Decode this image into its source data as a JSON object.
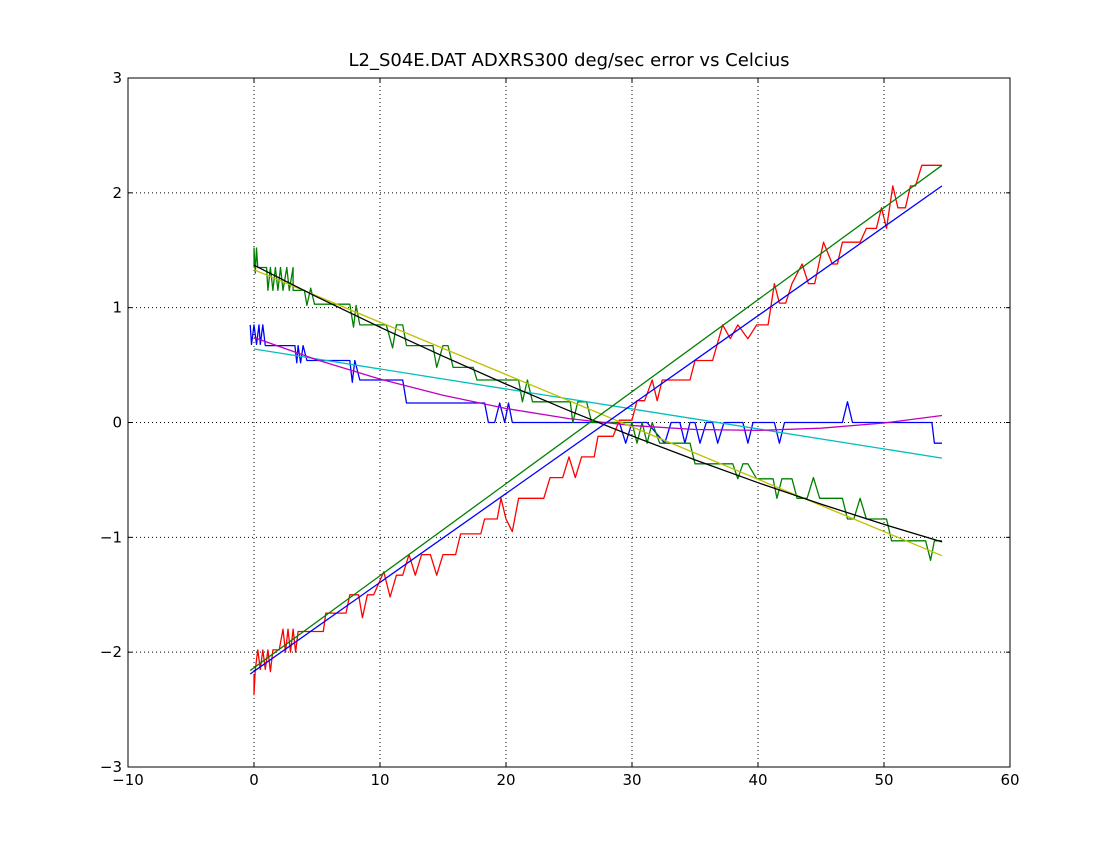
{
  "chart_data": {
    "type": "line",
    "title": "L2_S04E.DAT ADXRS300 deg/sec error vs Celcius",
    "xlabel": "",
    "ylabel": "",
    "xlim": [
      -10,
      60
    ],
    "ylim": [
      -3,
      3
    ],
    "xticks": [
      -10,
      0,
      10,
      20,
      30,
      40,
      50,
      60
    ],
    "yticks": [
      -3,
      -2,
      -1,
      0,
      1,
      2,
      3
    ],
    "grid": true,
    "legend": "none",
    "series": [
      {
        "color": "#0000ff",
        "points": [
          [
            -0.3,
            0.85
          ],
          [
            -0.2,
            0.68
          ],
          [
            0,
            0.85
          ],
          [
            0.2,
            0.68
          ],
          [
            0.4,
            0.85
          ],
          [
            0.5,
            0.68
          ],
          [
            0.7,
            0.85
          ],
          [
            0.9,
            0.67
          ],
          [
            3.25,
            0.67
          ],
          [
            3.4,
            0.52
          ],
          [
            3.5,
            0.67
          ],
          [
            3.7,
            0.52
          ],
          [
            3.9,
            0.67
          ],
          [
            4.2,
            0.54
          ],
          [
            7.6,
            0.54
          ],
          [
            7.8,
            0.35
          ],
          [
            8.0,
            0.54
          ],
          [
            8.4,
            0.37
          ],
          [
            11.8,
            0.37
          ],
          [
            12.1,
            0.17
          ],
          [
            18.3,
            0.17
          ],
          [
            18.6,
            0
          ],
          [
            19.1,
            0
          ],
          [
            19.5,
            0.17
          ],
          [
            19.9,
            0
          ],
          [
            20.2,
            0.17
          ],
          [
            20.5,
            0
          ],
          [
            29,
            0
          ],
          [
            29.5,
            -0.18
          ],
          [
            30,
            0
          ],
          [
            31.2,
            0
          ],
          [
            32.6,
            -0.18
          ],
          [
            33.1,
            0
          ],
          [
            33.8,
            0
          ],
          [
            34.2,
            -0.18
          ],
          [
            34.6,
            0
          ],
          [
            35,
            0
          ],
          [
            35.4,
            -0.18
          ],
          [
            35.9,
            0
          ],
          [
            36.4,
            0
          ],
          [
            36.8,
            -0.18
          ],
          [
            37.3,
            0
          ],
          [
            38.8,
            0
          ],
          [
            39.2,
            -0.18
          ],
          [
            39.6,
            0
          ],
          [
            41.3,
            0
          ],
          [
            41.7,
            -0.18
          ],
          [
            42.1,
            0
          ],
          [
            46.7,
            0
          ],
          [
            47.1,
            0.18
          ],
          [
            47.5,
            0
          ],
          [
            53.8,
            0
          ],
          [
            54,
            -0.18
          ],
          [
            54.6,
            -0.18
          ]
        ]
      },
      {
        "color": "#008000",
        "points": [
          [
            0,
            1.35
          ],
          [
            0,
            1.52
          ],
          [
            0.1,
            1.3
          ],
          [
            0.2,
            1.52
          ],
          [
            0.3,
            1.35
          ],
          [
            1.0,
            1.35
          ],
          [
            1.1,
            1.15
          ],
          [
            1.3,
            1.35
          ],
          [
            1.5,
            1.15
          ],
          [
            1.7,
            1.35
          ],
          [
            1.9,
            1.15
          ],
          [
            2.1,
            1.35
          ],
          [
            2.3,
            1.15
          ],
          [
            2.6,
            1.35
          ],
          [
            2.8,
            1.15
          ],
          [
            3.1,
            1.35
          ],
          [
            3.1,
            1.15
          ],
          [
            4.0,
            1.15
          ],
          [
            4.2,
            1.02
          ],
          [
            4.5,
            1.17
          ],
          [
            4.8,
            1.03
          ],
          [
            7.6,
            1.03
          ],
          [
            7.9,
            0.83
          ],
          [
            8.1,
            1.02
          ],
          [
            8.4,
            0.85
          ],
          [
            10.5,
            0.85
          ],
          [
            11.0,
            0.65
          ],
          [
            11.3,
            0.85
          ],
          [
            11.8,
            0.85
          ],
          [
            12.1,
            0.67
          ],
          [
            14.2,
            0.67
          ],
          [
            14.5,
            0.48
          ],
          [
            15.0,
            0.67
          ],
          [
            15.4,
            0.67
          ],
          [
            15.8,
            0.48
          ],
          [
            17.4,
            0.48
          ],
          [
            17.7,
            0.37
          ],
          [
            21.0,
            0.37
          ],
          [
            21.3,
            0.18
          ],
          [
            21.7,
            0.37
          ],
          [
            22.1,
            0.18
          ],
          [
            25.1,
            0.18
          ],
          [
            25.3,
            0
          ],
          [
            25.7,
            0.18
          ],
          [
            26.4,
            0.18
          ],
          [
            26.8,
            0
          ],
          [
            30,
            0
          ],
          [
            30.4,
            -0.18
          ],
          [
            30.8,
            0
          ],
          [
            31.2,
            -0.18
          ],
          [
            31.6,
            0
          ],
          [
            32.2,
            -0.18
          ],
          [
            34.6,
            -0.18
          ],
          [
            35,
            -0.36
          ],
          [
            38,
            -0.36
          ],
          [
            38.4,
            -0.49
          ],
          [
            38.8,
            -0.36
          ],
          [
            39.2,
            -0.36
          ],
          [
            39.9,
            -0.49
          ],
          [
            41.2,
            -0.49
          ],
          [
            41.5,
            -0.66
          ],
          [
            41.9,
            -0.49
          ],
          [
            42.7,
            -0.49
          ],
          [
            43.1,
            -0.66
          ],
          [
            43.9,
            -0.66
          ],
          [
            44.4,
            -0.48
          ],
          [
            44.9,
            -0.66
          ],
          [
            46.7,
            -0.66
          ],
          [
            47.1,
            -0.84
          ],
          [
            47.6,
            -0.84
          ],
          [
            48.1,
            -0.66
          ],
          [
            48.6,
            -0.84
          ],
          [
            50.2,
            -0.84
          ],
          [
            50.6,
            -1.03
          ],
          [
            53.3,
            -1.03
          ],
          [
            53.7,
            -1.2
          ],
          [
            54,
            -1.03
          ],
          [
            54.6,
            -1.03
          ]
        ]
      },
      {
        "color": "#ff0000",
        "points": [
          [
            0,
            -2.2
          ],
          [
            0,
            -2.37
          ],
          [
            0.1,
            -2.15
          ],
          [
            0.3,
            -1.98
          ],
          [
            0.5,
            -2.15
          ],
          [
            0.7,
            -1.98
          ],
          [
            0.9,
            -2.15
          ],
          [
            1.1,
            -1.98
          ],
          [
            1.3,
            -2.17
          ],
          [
            1.5,
            -1.98
          ],
          [
            2.0,
            -1.98
          ],
          [
            2.3,
            -1.8
          ],
          [
            2.5,
            -2.0
          ],
          [
            2.7,
            -1.8
          ],
          [
            2.9,
            -2.0
          ],
          [
            3.1,
            -1.8
          ],
          [
            3.3,
            -2.0
          ],
          [
            3.5,
            -1.82
          ],
          [
            5.5,
            -1.82
          ],
          [
            5.7,
            -1.66
          ],
          [
            7.3,
            -1.66
          ],
          [
            7.6,
            -1.5
          ],
          [
            8.3,
            -1.5
          ],
          [
            8.6,
            -1.7
          ],
          [
            9.0,
            -1.5
          ],
          [
            9.5,
            -1.5
          ],
          [
            10.3,
            -1.3
          ],
          [
            10.8,
            -1.52
          ],
          [
            11.3,
            -1.33
          ],
          [
            11.8,
            -1.33
          ],
          [
            12.3,
            -1.15
          ],
          [
            12.8,
            -1.33
          ],
          [
            13.3,
            -1.15
          ],
          [
            14.0,
            -1.15
          ],
          [
            14.5,
            -1.33
          ],
          [
            15.0,
            -1.15
          ],
          [
            16.0,
            -1.15
          ],
          [
            16.4,
            -0.97
          ],
          [
            18.0,
            -0.97
          ],
          [
            18.3,
            -0.84
          ],
          [
            19.3,
            -0.84
          ],
          [
            19.6,
            -0.66
          ],
          [
            20.0,
            -0.84
          ],
          [
            20.5,
            -0.95
          ],
          [
            21.0,
            -0.66
          ],
          [
            23.0,
            -0.66
          ],
          [
            23.5,
            -0.48
          ],
          [
            24.5,
            -0.48
          ],
          [
            25.0,
            -0.3
          ],
          [
            25.5,
            -0.48
          ],
          [
            26.0,
            -0.3
          ],
          [
            27.0,
            -0.3
          ],
          [
            27.3,
            -0.12
          ],
          [
            28.5,
            -0.12
          ],
          [
            29.0,
            0.02
          ],
          [
            30.0,
            0.02
          ],
          [
            30.4,
            0.19
          ],
          [
            31.0,
            0.19
          ],
          [
            31.6,
            0.37
          ],
          [
            32.0,
            0.19
          ],
          [
            32.4,
            0.37
          ],
          [
            34.6,
            0.37
          ],
          [
            35.0,
            0.54
          ],
          [
            36.4,
            0.54
          ],
          [
            37.2,
            0.85
          ],
          [
            37.8,
            0.73
          ],
          [
            38.4,
            0.85
          ],
          [
            39.2,
            0.73
          ],
          [
            39.9,
            0.85
          ],
          [
            40.8,
            0.85
          ],
          [
            41.3,
            1.21
          ],
          [
            41.7,
            1.04
          ],
          [
            42.2,
            1.04
          ],
          [
            42.7,
            1.21
          ],
          [
            43.5,
            1.38
          ],
          [
            44.0,
            1.21
          ],
          [
            44.5,
            1.21
          ],
          [
            45.2,
            1.57
          ],
          [
            45.9,
            1.38
          ],
          [
            46.3,
            1.38
          ],
          [
            46.7,
            1.57
          ],
          [
            48.1,
            1.57
          ],
          [
            48.6,
            1.69
          ],
          [
            49.4,
            1.69
          ],
          [
            49.8,
            1.87
          ],
          [
            50.2,
            1.69
          ],
          [
            50.7,
            2.06
          ],
          [
            51.1,
            1.87
          ],
          [
            51.7,
            1.87
          ],
          [
            52.1,
            2.06
          ],
          [
            52.5,
            2.06
          ],
          [
            53.0,
            2.24
          ],
          [
            54.6,
            2.24
          ]
        ]
      },
      {
        "color": "#00bfbf",
        "points": [
          [
            0,
            0.64
          ],
          [
            54.6,
            -0.31
          ]
        ]
      },
      {
        "color": "#bf00bf",
        "points": [
          [
            0,
            0.74
          ],
          [
            5,
            0.545
          ],
          [
            10,
            0.378
          ],
          [
            15,
            0.237
          ],
          [
            20,
            0.122
          ],
          [
            25,
            0.034
          ],
          [
            30,
            -0.026
          ],
          [
            35,
            -0.061
          ],
          [
            40,
            -0.069
          ],
          [
            45,
            -0.05
          ],
          [
            50,
            -0.004
          ],
          [
            54.6,
            0.061
          ]
        ]
      },
      {
        "color": "#bfbf00",
        "points": [
          [
            0,
            1.33
          ],
          [
            54.6,
            -1.16
          ]
        ]
      },
      {
        "color": "#000000",
        "points": [
          [
            0,
            1.37
          ],
          [
            5,
            1.094
          ],
          [
            10,
            0.83
          ],
          [
            15,
            0.577
          ],
          [
            20,
            0.334
          ],
          [
            25,
            0.103
          ],
          [
            30,
            -0.117
          ],
          [
            35,
            -0.326
          ],
          [
            40,
            -0.524
          ],
          [
            45,
            -0.711
          ],
          [
            50,
            -0.887
          ],
          [
            54.6,
            -1.04
          ]
        ]
      },
      {
        "color": "#0000ff",
        "points": [
          [
            -0.3,
            -2.19
          ],
          [
            54.6,
            2.06
          ]
        ]
      },
      {
        "color": "#008000",
        "points": [
          [
            -0.3,
            -2.16
          ],
          [
            54.6,
            2.24
          ]
        ]
      }
    ]
  }
}
